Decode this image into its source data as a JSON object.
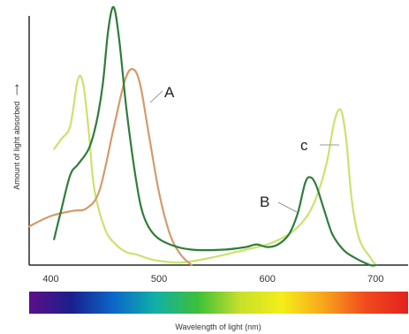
{
  "chart_data": {
    "type": "line",
    "title": "",
    "xlabel": "Wavelength of light (nm)",
    "ylabel": "Amount of light absorbed",
    "ylabel_arrow": "⟶",
    "xlim": [
      380,
      730
    ],
    "ylim": [
      0,
      1.0
    ],
    "x_ticks": [
      "400",
      "500",
      "600",
      "700"
    ],
    "grid": false,
    "legend": "none; series labelled directly with leader lines",
    "spectrum_bar": [
      "#5b0f8a",
      "#1b1f8c",
      "#0a67c9",
      "#12b0a6",
      "#3bbf3a",
      "#c6e02a",
      "#f4ee19",
      "#f7a51b",
      "#f04a1d",
      "#e3221e"
    ],
    "series": [
      {
        "name": "A",
        "color": "#d59a6a",
        "x": [
          380,
          400,
          420,
          433,
          445,
          458,
          468,
          475,
          482,
          490,
          500,
          510,
          520,
          530
        ],
        "y": [
          0.15,
          0.19,
          0.21,
          0.22,
          0.29,
          0.53,
          0.71,
          0.76,
          0.71,
          0.52,
          0.28,
          0.12,
          0.04,
          0
        ]
      },
      {
        "name": "B",
        "color": "#2f7d3a",
        "x": [
          403,
          410,
          418,
          425,
          435,
          442,
          448,
          453,
          458,
          463,
          470,
          478,
          485,
          495,
          510,
          530,
          560,
          580,
          590,
          600,
          610,
          620,
          628,
          635,
          640,
          645,
          652,
          660,
          670,
          680,
          695,
          700
        ],
        "y": [
          0.1,
          0.22,
          0.35,
          0.39,
          0.45,
          0.55,
          0.7,
          0.91,
          1.0,
          0.88,
          0.6,
          0.35,
          0.2,
          0.12,
          0.08,
          0.06,
          0.06,
          0.07,
          0.08,
          0.07,
          0.08,
          0.12,
          0.2,
          0.32,
          0.34,
          0.31,
          0.22,
          0.12,
          0.06,
          0.03,
          0,
          0
        ]
      },
      {
        "name": "C",
        "color": "#c9e36f",
        "x": [
          403,
          410,
          418,
          425,
          430,
          435,
          440,
          450,
          460,
          470,
          480,
          495,
          520,
          550,
          580,
          600,
          620,
          635,
          645,
          655,
          662,
          668,
          673,
          678,
          685,
          695,
          700
        ],
        "y": [
          0.45,
          0.49,
          0.54,
          0.72,
          0.7,
          0.52,
          0.3,
          0.14,
          0.08,
          0.05,
          0.04,
          0.02,
          0.01,
          0.03,
          0.06,
          0.08,
          0.12,
          0.18,
          0.26,
          0.4,
          0.56,
          0.6,
          0.48,
          0.25,
          0.1,
          0.03,
          0
        ]
      }
    ],
    "annotations": [
      {
        "text": "A",
        "series": "A"
      },
      {
        "text": "B",
        "series": "B"
      },
      {
        "text": "c",
        "series": "C"
      }
    ]
  }
}
